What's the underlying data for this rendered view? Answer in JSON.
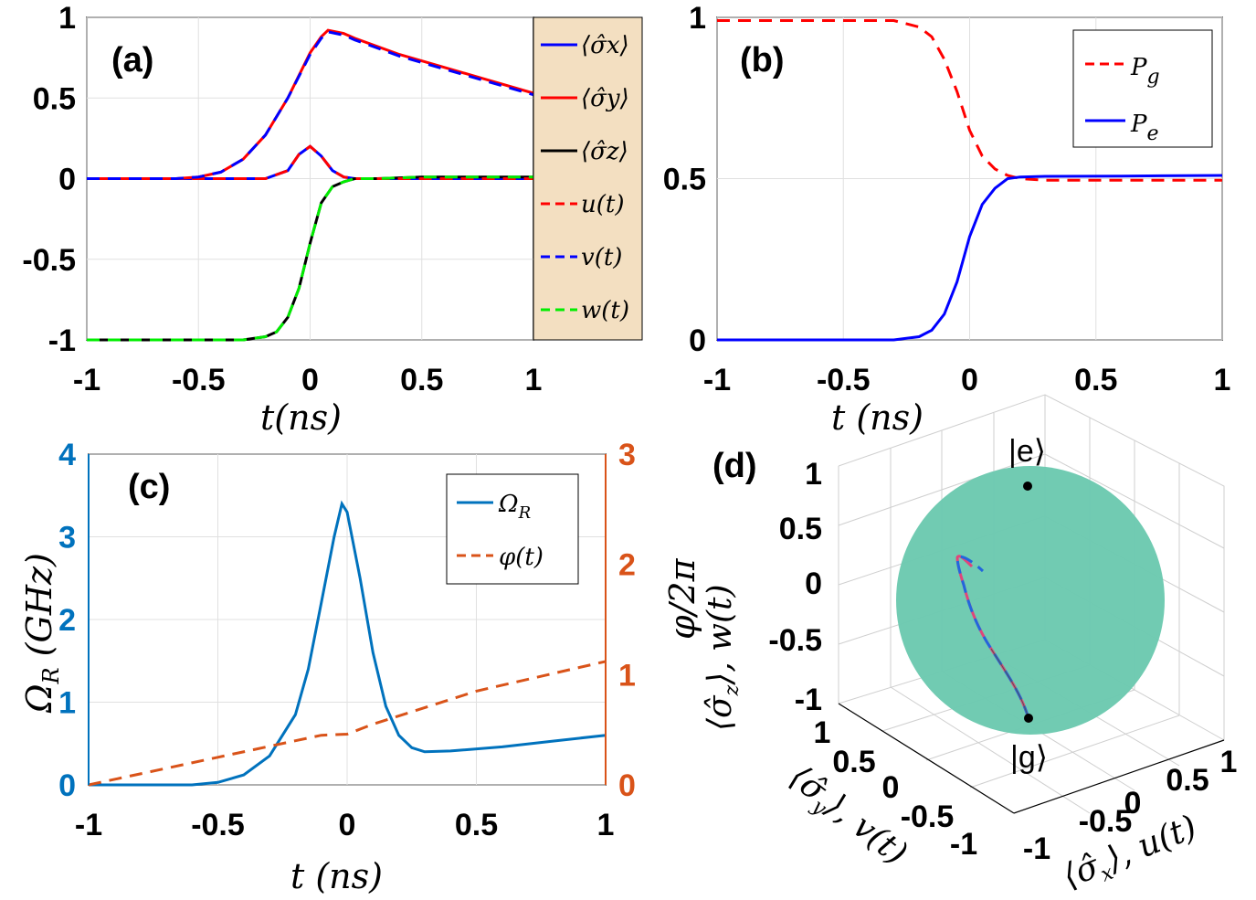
{
  "chart_data": [
    {
      "panel": "(a)",
      "type": "line",
      "xlabel": "t(ns)",
      "xlim": [
        -1,
        1
      ],
      "ylim": [
        -1,
        1
      ],
      "xticks": [
        "-1",
        "-0.5",
        "0",
        "0.5",
        "1"
      ],
      "yticks": [
        "1",
        "0.5",
        "0",
        "-0.5",
        "-1"
      ],
      "grid": true,
      "legend_position": "right-outside",
      "legend_bg": "#f3dfc1",
      "series": [
        {
          "name": "⟨σ̂x⟩",
          "color": "#0000ff",
          "style": "solid",
          "x": [
            -1,
            -0.6,
            -0.4,
            -0.3,
            -0.2,
            -0.1,
            -0.05,
            0,
            0.05,
            0.1,
            0.15,
            0.2,
            0.3,
            0.4,
            0.6,
            0.8,
            1
          ],
          "y": [
            0,
            0,
            0,
            0,
            0,
            0.05,
            0.15,
            0.2,
            0.14,
            0.05,
            0.01,
            0,
            0,
            0,
            0,
            0,
            0
          ]
        },
        {
          "name": "⟨σ̂y⟩",
          "color": "#ff0000",
          "style": "solid",
          "x": [
            -1,
            -0.6,
            -0.5,
            -0.4,
            -0.3,
            -0.2,
            -0.1,
            0,
            0.05,
            0.08,
            0.15,
            0.2,
            0.3,
            0.4,
            0.6,
            0.8,
            1
          ],
          "y": [
            0,
            0,
            0.01,
            0.04,
            0.12,
            0.27,
            0.5,
            0.78,
            0.88,
            0.92,
            0.9,
            0.87,
            0.82,
            0.77,
            0.69,
            0.61,
            0.53
          ]
        },
        {
          "name": "⟨σ̂z⟩",
          "color": "#000000",
          "style": "solid",
          "x": [
            -1,
            -0.3,
            -0.2,
            -0.15,
            -0.1,
            -0.05,
            0,
            0.05,
            0.1,
            0.15,
            0.2,
            0.3,
            0.5,
            0.7,
            1
          ],
          "y": [
            -1,
            -1,
            -0.98,
            -0.95,
            -0.86,
            -0.68,
            -0.4,
            -0.15,
            -0.05,
            -0.02,
            0,
            0,
            0.01,
            0.01,
            0.01
          ]
        },
        {
          "name": "u(t)",
          "color": "#ff0000",
          "style": "dashed",
          "x": [
            -1,
            -0.6,
            -0.4,
            -0.3,
            -0.2,
            -0.1,
            -0.05,
            0,
            0.05,
            0.1,
            0.15,
            0.2,
            0.3,
            0.4,
            0.6,
            0.8,
            1
          ],
          "y": [
            0,
            0,
            0,
            0,
            0,
            0.05,
            0.15,
            0.2,
            0.14,
            0.05,
            0.01,
            0,
            0,
            0,
            0,
            0,
            0
          ]
        },
        {
          "name": "v(t)",
          "color": "#0000ff",
          "style": "dashed",
          "x": [
            -1,
            -0.6,
            -0.5,
            -0.4,
            -0.3,
            -0.2,
            -0.1,
            0,
            0.05,
            0.08,
            0.15,
            0.2,
            0.3,
            0.4,
            0.6,
            0.8,
            1
          ],
          "y": [
            0,
            0,
            0.01,
            0.04,
            0.12,
            0.27,
            0.5,
            0.77,
            0.87,
            0.91,
            0.89,
            0.86,
            0.81,
            0.76,
            0.68,
            0.6,
            0.52
          ]
        },
        {
          "name": "w(t)",
          "color": "#00ee00",
          "style": "dashed",
          "x": [
            -1,
            -0.3,
            -0.2,
            -0.15,
            -0.1,
            -0.05,
            0,
            0.05,
            0.1,
            0.15,
            0.2,
            0.3,
            0.5,
            0.7,
            1
          ],
          "y": [
            -1,
            -1,
            -0.98,
            -0.95,
            -0.86,
            -0.68,
            -0.4,
            -0.15,
            -0.05,
            -0.02,
            0,
            0,
            0.01,
            0.01,
            0.01
          ]
        }
      ]
    },
    {
      "panel": "(b)",
      "type": "line",
      "xlabel": "t (ns)",
      "xlim": [
        -1,
        1
      ],
      "ylim": [
        0,
        1
      ],
      "xticks": [
        "-1",
        "-0.5",
        "0",
        "0.5",
        "1"
      ],
      "yticks": [
        "1",
        "0.5",
        "0"
      ],
      "grid": true,
      "legend_position": "top-right",
      "series": [
        {
          "name": "Pg",
          "color": "#ff0000",
          "style": "dashed",
          "x": [
            -1,
            -0.3,
            -0.2,
            -0.15,
            -0.1,
            -0.05,
            0,
            0.05,
            0.1,
            0.15,
            0.2,
            0.3,
            0.6,
            1
          ],
          "y": [
            0.99,
            0.99,
            0.97,
            0.94,
            0.87,
            0.77,
            0.65,
            0.57,
            0.53,
            0.51,
            0.5,
            0.495,
            0.495,
            0.495
          ]
        },
        {
          "name": "Pe",
          "color": "#0000ff",
          "style": "solid",
          "x": [
            -1,
            -0.3,
            -0.2,
            -0.15,
            -0.1,
            -0.05,
            0,
            0.05,
            0.1,
            0.15,
            0.2,
            0.3,
            0.6,
            1
          ],
          "y": [
            0,
            0,
            0.01,
            0.03,
            0.08,
            0.18,
            0.32,
            0.42,
            0.47,
            0.5,
            0.505,
            0.507,
            0.508,
            0.51
          ]
        }
      ]
    },
    {
      "panel": "(c)",
      "type": "line",
      "xlabel": "t (ns)",
      "ylabel_left": "ΩR (GHz)",
      "ylabel_right": "φ/2π",
      "xlim": [
        -1,
        1
      ],
      "ylim_left": [
        0,
        4
      ],
      "ylim_right": [
        0,
        3
      ],
      "xticks": [
        "-1",
        "-0.5",
        "0",
        "0.5",
        "1"
      ],
      "yticks_left": [
        "4",
        "3",
        "2",
        "1",
        "0"
      ],
      "yticks_right": [
        "3",
        "2",
        "1",
        "0"
      ],
      "left_axis_color": "#0072bd",
      "right_axis_color": "#d95319",
      "grid": true,
      "legend_position": "top-right",
      "series": [
        {
          "name": "ΩR",
          "axis": "left",
          "color": "#0072bd",
          "style": "solid",
          "x": [
            -1,
            -0.6,
            -0.5,
            -0.4,
            -0.3,
            -0.2,
            -0.15,
            -0.1,
            -0.05,
            -0.02,
            0,
            0.05,
            0.1,
            0.15,
            0.2,
            0.25,
            0.3,
            0.4,
            0.6,
            0.8,
            1
          ],
          "y": [
            0,
            0,
            0.03,
            0.12,
            0.35,
            0.85,
            1.4,
            2.2,
            3.0,
            3.4,
            3.3,
            2.5,
            1.6,
            0.95,
            0.6,
            0.45,
            0.4,
            0.41,
            0.46,
            0.53,
            0.6
          ]
        },
        {
          "name": "φ(t)",
          "axis": "right",
          "color": "#d95319",
          "style": "dashed",
          "x": [
            -1,
            -0.5,
            -0.2,
            -0.1,
            0,
            0.1,
            0.5,
            1
          ],
          "y": [
            0,
            0.25,
            0.4,
            0.45,
            0.46,
            0.55,
            0.85,
            1.12
          ]
        }
      ]
    },
    {
      "panel": "(d)",
      "type": "scatter",
      "xlabel": "⟨σ̂x⟩, u(t)",
      "ylabel": "⟨σ̂y⟩, v(t)",
      "zlabel": "⟨σ̂z⟩, w(t)",
      "zticks": [
        "1",
        "0.5",
        "0",
        "-0.5",
        "-1"
      ],
      "yticks": [
        "1",
        "0.5",
        "0",
        "-0.5",
        "-1"
      ],
      "xticks": [
        "-1",
        "-0.5",
        "0",
        "0.5",
        "1"
      ],
      "sphere_color": "#6cc9b0",
      "pole_labels": [
        "|e⟩",
        "|g⟩"
      ]
    }
  ]
}
